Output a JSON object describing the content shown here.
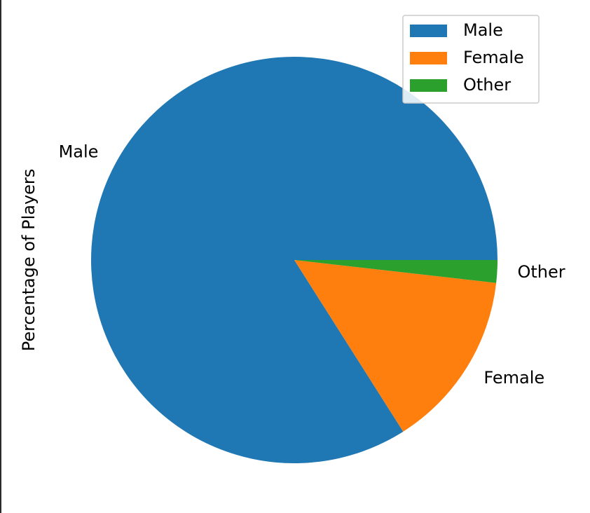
{
  "chart_data": {
    "type": "pie",
    "ylabel": "Percentage of Players",
    "slices": [
      {
        "label": "Male",
        "value": 84.0,
        "color": "#1f77b4"
      },
      {
        "label": "Female",
        "value": 14.2,
        "color": "#ff7f0e"
      },
      {
        "label": "Other",
        "value": 1.8,
        "color": "#2ca02c"
      }
    ],
    "start_angle_deg": 0,
    "direction": "counterclockwise",
    "legend": {
      "placement": "top-right",
      "entries": [
        "Male",
        "Female",
        "Other"
      ]
    }
  }
}
